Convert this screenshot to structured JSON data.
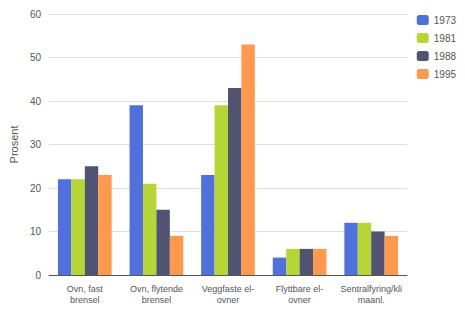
{
  "chart_data": {
    "type": "bar",
    "categories": [
      "Ovn, fast\nbrensel",
      "Ovn, flytende\nbrensel",
      "Veggfaste el-\novner",
      "Flyttbare el-\novner",
      "Sentralfyring/kli\nmaanl."
    ],
    "series": [
      {
        "name": "1973",
        "values": [
          22,
          39,
          23,
          4,
          12
        ]
      },
      {
        "name": "1981",
        "values": [
          22,
          21,
          39,
          6,
          12
        ]
      },
      {
        "name": "1988",
        "values": [
          25,
          15,
          43,
          6,
          10
        ]
      },
      {
        "name": "1995",
        "values": [
          23,
          9,
          53,
          6,
          9
        ]
      }
    ],
    "ylabel": "Prosent",
    "ylim": [
      0,
      60
    ],
    "yticks": [
      0,
      10,
      20,
      30,
      40,
      50,
      60
    ],
    "grid": true,
    "legend": "right"
  }
}
